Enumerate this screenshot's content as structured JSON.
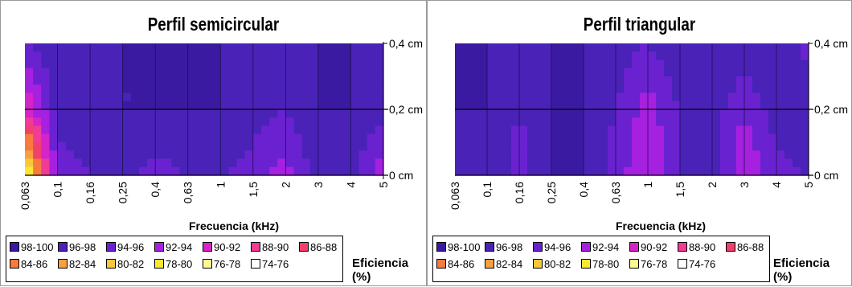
{
  "legend": {
    "title": "Eficiencia (%)",
    "items": [
      {
        "label": "98-100",
        "color": "#3a1aa0"
      },
      {
        "label": "96-98",
        "color": "#4a22b8"
      },
      {
        "label": "94-96",
        "color": "#6a22d0"
      },
      {
        "label": "92-94",
        "color": "#a620e0"
      },
      {
        "label": "90-92",
        "color": "#d624c8"
      },
      {
        "label": "88-90",
        "color": "#f03c96"
      },
      {
        "label": "86-88",
        "color": "#f0406e"
      },
      {
        "label": "84-86",
        "color": "#f87a3c"
      },
      {
        "label": "82-84",
        "color": "#f8a040"
      },
      {
        "label": "80-82",
        "color": "#f8c838"
      },
      {
        "label": "78-80",
        "color": "#f8e830"
      },
      {
        "label": "76-78",
        "color": "#fff890"
      },
      {
        "label": "74-76",
        "color": "#ffffff"
      }
    ]
  },
  "chart_data": [
    {
      "type": "heatmap",
      "title": "Perfil semicircular",
      "xlabel": "Frecuencia (kHz)",
      "ylabel": "",
      "x": [
        "0,063",
        "0,1",
        "0,16",
        "0,25",
        "0,4",
        "0,63",
        "1",
        "1,5",
        "2",
        "3",
        "4",
        "5"
      ],
      "y": [
        "0 cm",
        "0,2 cm",
        "0,4 cm"
      ],
      "z": [
        [
          77,
          95,
          96,
          97,
          95,
          96,
          96,
          95,
          93,
          97,
          97,
          92
        ],
        [
          90,
          97,
          97,
          98,
          98,
          98,
          98,
          97,
          96,
          98,
          98,
          97
        ],
        [
          96,
          98,
          98,
          98,
          98,
          98,
          98,
          98,
          96,
          98,
          98,
          97
        ]
      ]
    },
    {
      "type": "heatmap",
      "title": "Perfil triangular",
      "xlabel": "Frecuencia (kHz)",
      "ylabel": "",
      "x": [
        "0,063",
        "0,1",
        "0,16",
        "0,25",
        "0,4",
        "0,63",
        "1",
        "1,5",
        "2",
        "3",
        "4",
        "5"
      ],
      "y": [
        "0 cm",
        "0,2 cm",
        "0,4 cm"
      ],
      "z": [
        [
          97,
          98,
          95,
          98,
          98,
          95,
          92,
          96,
          98,
          92,
          95,
          96
        ],
        [
          98,
          98,
          96,
          98,
          98,
          96,
          93,
          96,
          97,
          94,
          97,
          98
        ],
        [
          98,
          98,
          98,
          98,
          98,
          97,
          96,
          98,
          98,
          98,
          98,
          95
        ]
      ]
    }
  ]
}
